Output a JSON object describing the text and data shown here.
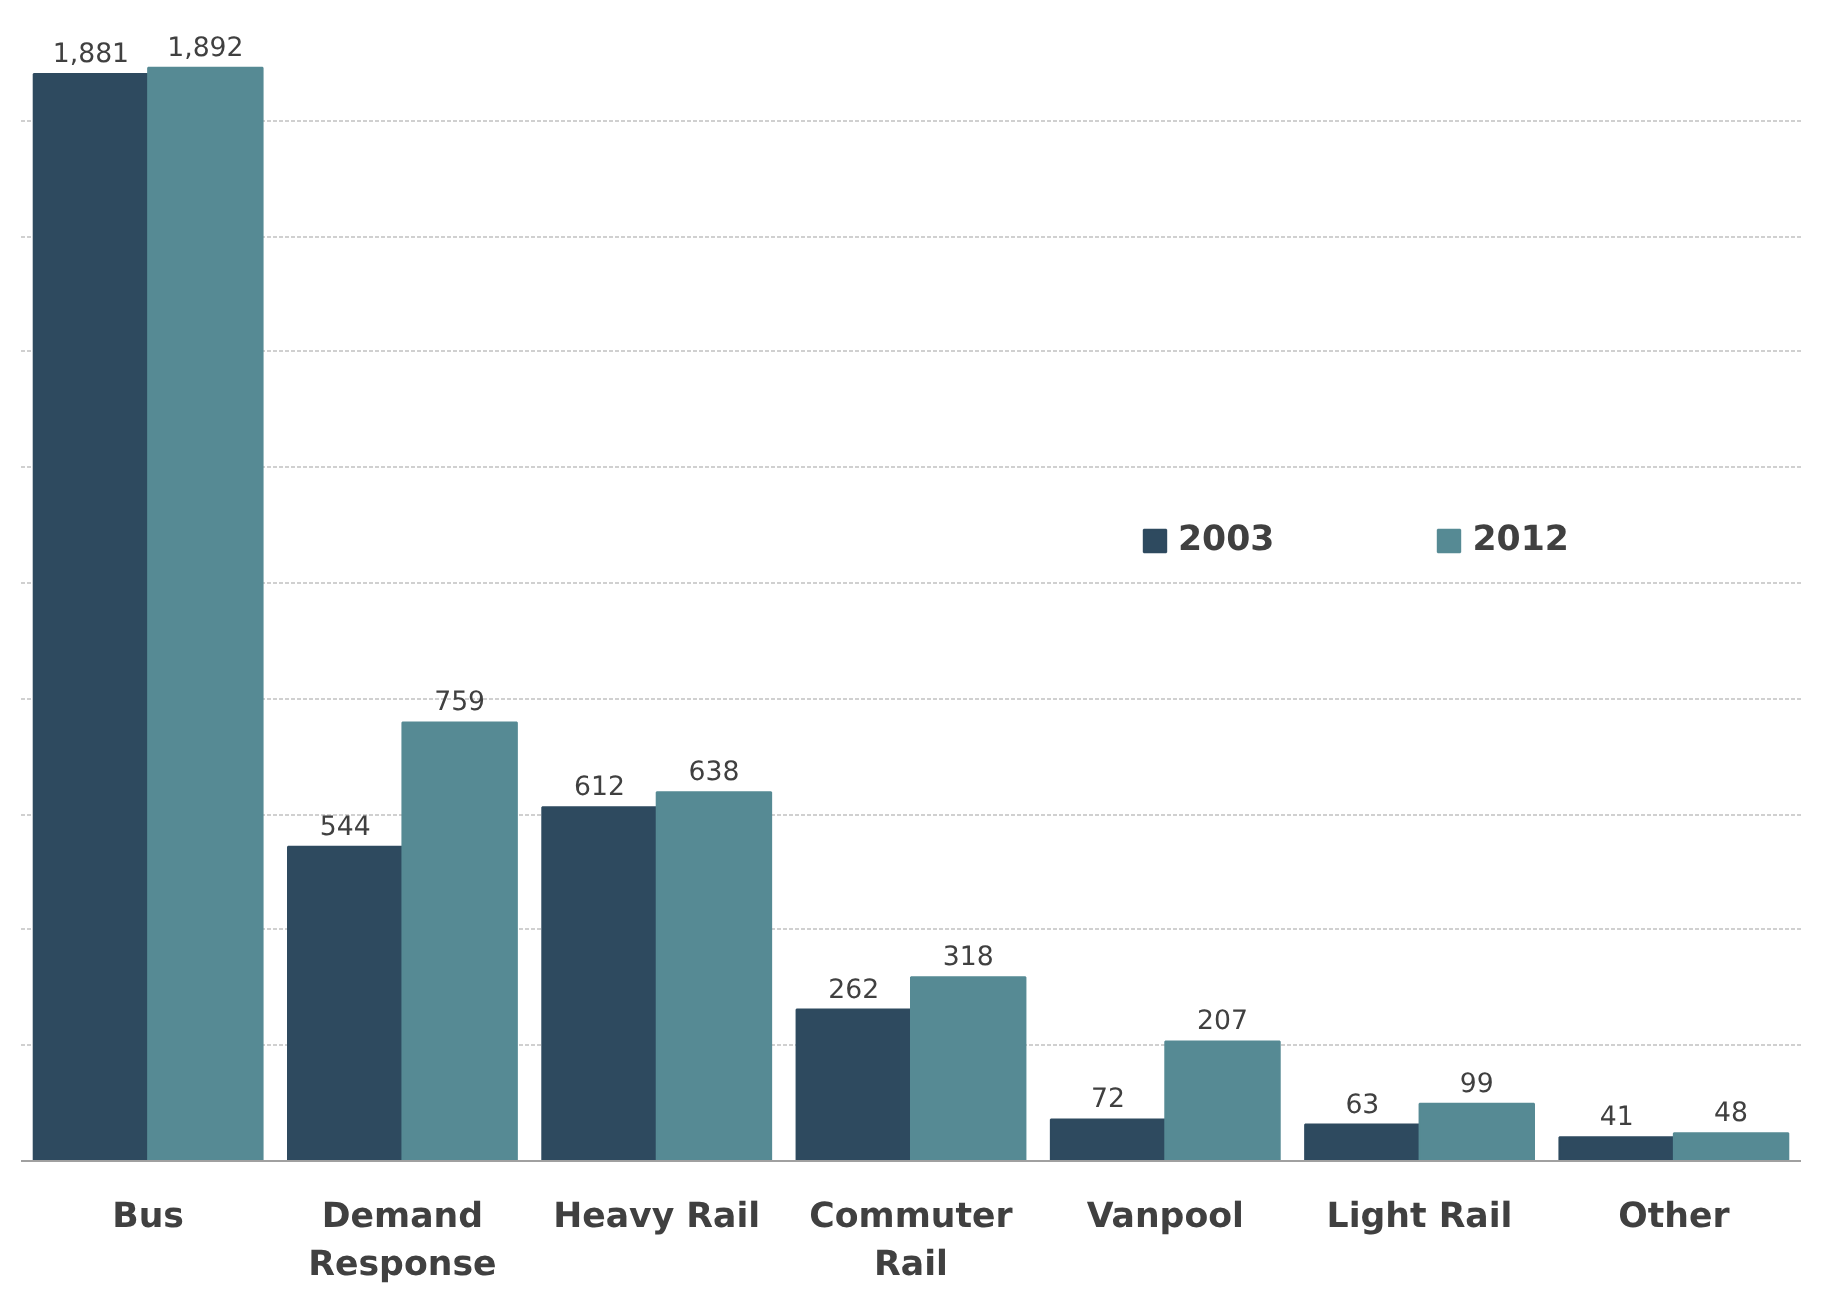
{
  "chart_data": {
    "type": "bar",
    "categories": [
      "Bus",
      "Demand Response",
      "Heavy Rail",
      "Commuter Rail",
      "Vanpool",
      "Light Rail",
      "Other"
    ],
    "series": [
      {
        "name": "2003",
        "color": "#2e4a5f",
        "values": [
          1881,
          544,
          612,
          262,
          72,
          63,
          41
        ],
        "value_labels": [
          "1,881",
          "544",
          "612",
          "262",
          "72",
          "63",
          "41"
        ]
      },
      {
        "name": "2012",
        "color": "#568a94",
        "values": [
          1892,
          759,
          638,
          318,
          207,
          99,
          48
        ],
        "value_labels": [
          "1,892",
          "759",
          "638",
          "318",
          "207",
          "99",
          "48"
        ]
      }
    ],
    "tick_labels": "x",
    "grid": "y",
    "legend": "right"
  }
}
